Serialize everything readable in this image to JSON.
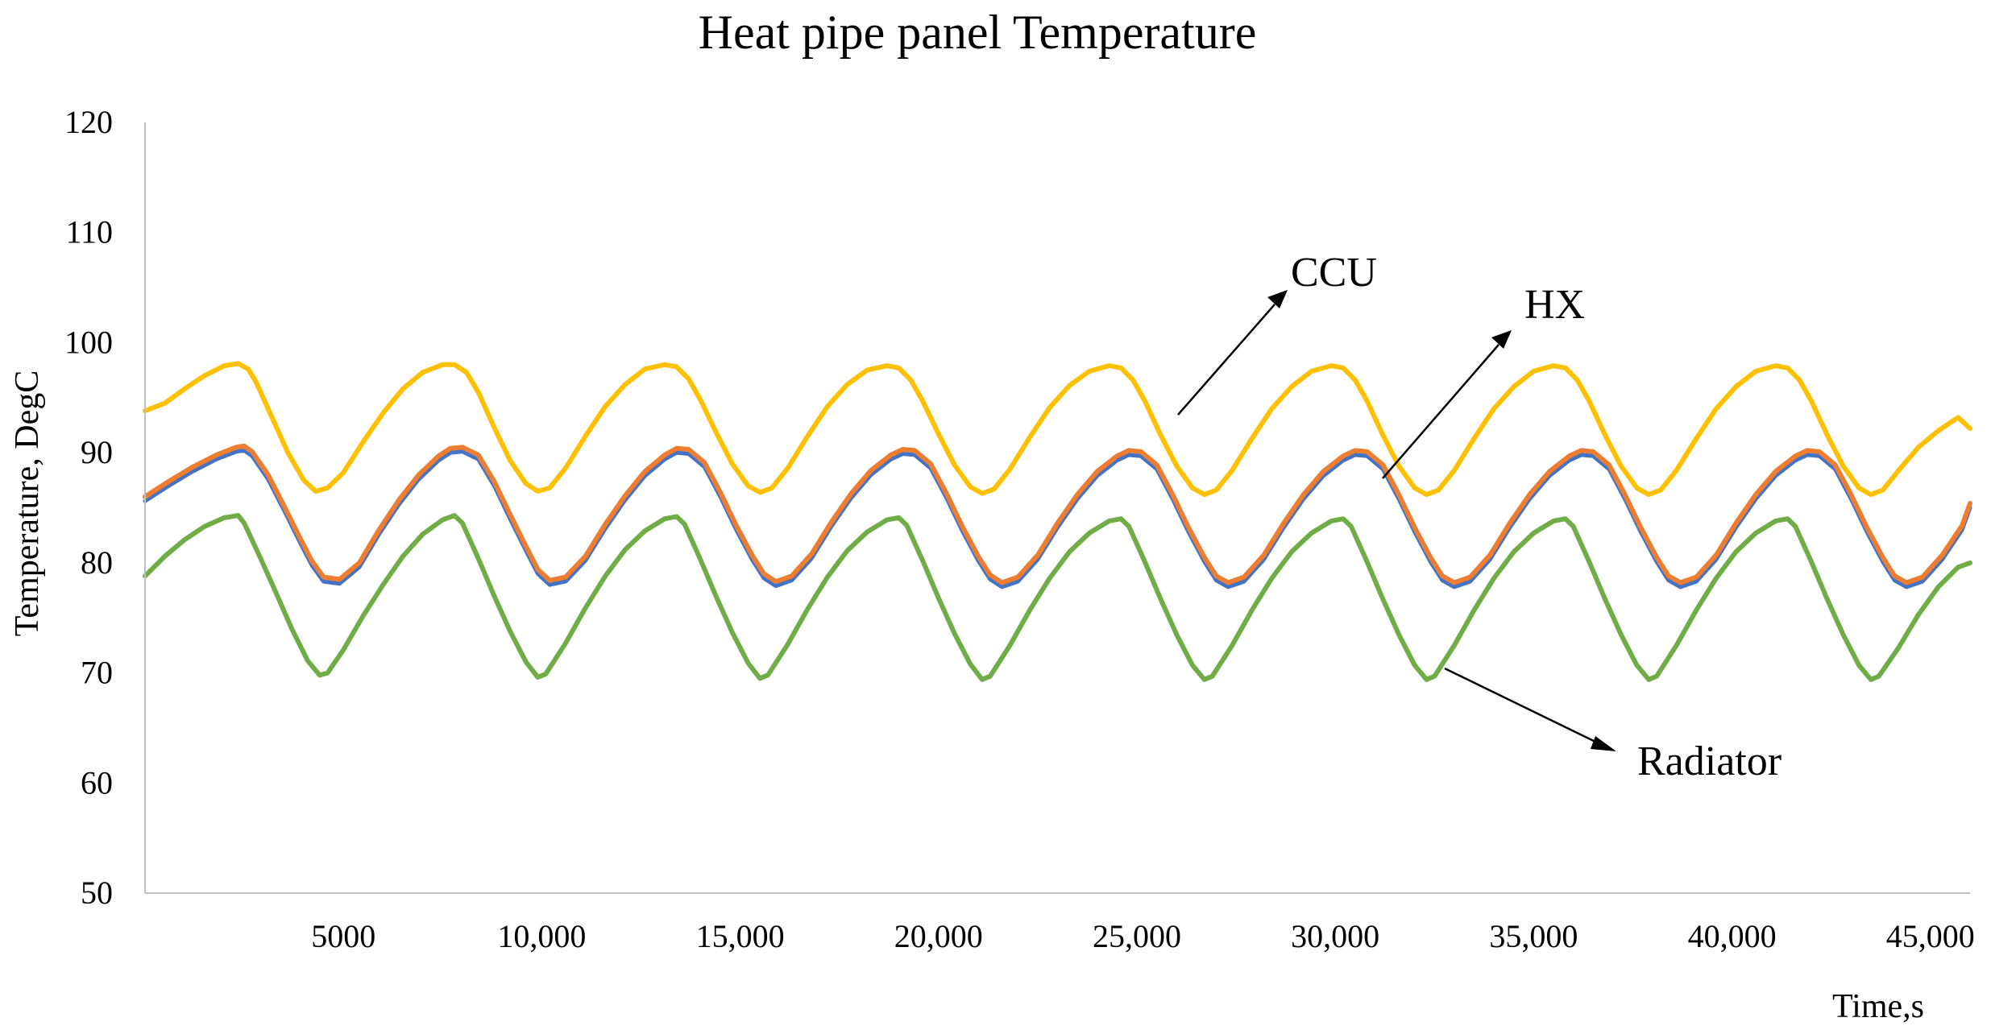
{
  "chart_data": {
    "type": "line",
    "title": "Heat pipe panel Temperature",
    "xlabel": "Time,s",
    "ylabel": "Temperature, DegC",
    "xlim": [
      0,
      46000
    ],
    "ylim": [
      50,
      120
    ],
    "x_ticks": [
      {
        "value": 5000,
        "label": "5000"
      },
      {
        "value": 10000,
        "label": "10,000"
      },
      {
        "value": 15000,
        "label": "15,000"
      },
      {
        "value": 20000,
        "label": "20,000"
      },
      {
        "value": 25000,
        "label": "25,000"
      },
      {
        "value": 30000,
        "label": "30,000"
      },
      {
        "value": 35000,
        "label": "35,000"
      },
      {
        "value": 40000,
        "label": "40,000"
      },
      {
        "value": 45000,
        "label": "45,000"
      }
    ],
    "y_ticks": [
      {
        "value": 50,
        "label": "50"
      },
      {
        "value": 60,
        "label": "60"
      },
      {
        "value": 70,
        "label": "70"
      },
      {
        "value": 80,
        "label": "80"
      },
      {
        "value": 90,
        "label": "90"
      },
      {
        "value": 100,
        "label": "100"
      },
      {
        "value": 110,
        "label": "110"
      },
      {
        "value": 120,
        "label": "120"
      }
    ],
    "grid": false,
    "series": [
      {
        "name": "CCU",
        "color": "#FFC000",
        "x": [
          0,
          500,
          1000,
          1500,
          2000,
          2350,
          2600,
          2800,
          3200,
          3600,
          4000,
          4300,
          4600,
          5000,
          5500,
          6000,
          6500,
          7000,
          7500,
          7800,
          8100,
          8400,
          8800,
          9200,
          9600,
          9900,
          10200,
          10600,
          11100,
          11600,
          12100,
          12600,
          13100,
          13400,
          13700,
          14000,
          14400,
          14800,
          15200,
          15500,
          15800,
          16200,
          16700,
          17200,
          17700,
          18200,
          18700,
          19000,
          19300,
          19600,
          20000,
          20400,
          20800,
          21100,
          21400,
          21800,
          22300,
          22800,
          23300,
          23800,
          24300,
          24600,
          24900,
          25200,
          25600,
          26000,
          26400,
          26700,
          27000,
          27400,
          27900,
          28400,
          28900,
          29400,
          29900,
          30200,
          30500,
          30800,
          31200,
          31600,
          32000,
          32300,
          32600,
          33000,
          33500,
          34000,
          34500,
          35000,
          35500,
          35800,
          36100,
          36400,
          36800,
          37200,
          37600,
          37900,
          38200,
          38600,
          39100,
          39600,
          40100,
          40600,
          41100,
          41400,
          41700,
          42000,
          42400,
          42800,
          43200,
          43500,
          43800,
          44200,
          44700,
          45200,
          45700,
          46000
        ],
        "values": [
          93.8,
          94.5,
          95.8,
          97.0,
          97.9,
          98.1,
          97.6,
          96.4,
          93.2,
          90.0,
          87.5,
          86.5,
          86.8,
          88.2,
          91.0,
          93.6,
          95.8,
          97.3,
          98.0,
          98.0,
          97.3,
          95.5,
          92.3,
          89.3,
          87.2,
          86.5,
          86.8,
          88.6,
          91.5,
          94.2,
          96.2,
          97.6,
          98.0,
          97.8,
          96.7,
          94.8,
          91.8,
          89.0,
          87.0,
          86.4,
          86.8,
          88.6,
          91.5,
          94.2,
          96.2,
          97.5,
          97.9,
          97.7,
          96.6,
          94.7,
          91.7,
          88.9,
          86.9,
          86.3,
          86.7,
          88.5,
          91.4,
          94.1,
          96.1,
          97.4,
          97.9,
          97.7,
          96.6,
          94.7,
          91.6,
          88.8,
          86.8,
          86.2,
          86.6,
          88.4,
          91.3,
          94.0,
          96.0,
          97.4,
          97.9,
          97.7,
          96.6,
          94.7,
          91.6,
          88.8,
          86.8,
          86.2,
          86.6,
          88.4,
          91.3,
          94.0,
          96.0,
          97.4,
          97.9,
          97.7,
          96.6,
          94.7,
          91.6,
          88.8,
          86.8,
          86.2,
          86.6,
          88.4,
          91.3,
          94.0,
          96.0,
          97.4,
          97.9,
          97.7,
          96.6,
          94.7,
          91.6,
          88.8,
          86.8,
          86.2,
          86.6,
          88.4,
          90.5,
          92.0,
          93.2,
          92.2
        ]
      },
      {
        "name": "HX (blue)",
        "color": "#4472C4",
        "x": [
          0,
          600,
          1200,
          1800,
          2300,
          2500,
          2700,
          3100,
          3500,
          3900,
          4200,
          4500,
          4900,
          5400,
          5900,
          6400,
          6900,
          7400,
          7700,
          8000,
          8400,
          8800,
          9200,
          9600,
          9900,
          10200,
          10600,
          11100,
          11600,
          12100,
          12600,
          13100,
          13400,
          13700,
          14100,
          14500,
          14900,
          15300,
          15600,
          15900,
          16300,
          16800,
          17300,
          17800,
          18300,
          18800,
          19100,
          19400,
          19800,
          20200,
          20600,
          21000,
          21300,
          21600,
          22000,
          22500,
          23000,
          23500,
          24000,
          24500,
          24800,
          25100,
          25500,
          25900,
          26300,
          26700,
          27000,
          27300,
          27700,
          28200,
          28700,
          29200,
          29700,
          30200,
          30500,
          30800,
          31200,
          31600,
          32000,
          32400,
          32700,
          33000,
          33400,
          33900,
          34400,
          34900,
          35400,
          35900,
          36200,
          36500,
          36900,
          37300,
          37700,
          38100,
          38400,
          38700,
          39100,
          39600,
          40100,
          40600,
          41100,
          41600,
          41900,
          42200,
          42600,
          43000,
          43400,
          43800,
          44100,
          44400,
          44800,
          45300,
          45800,
          46000
        ],
        "values": [
          85.6,
          87.0,
          88.3,
          89.4,
          90.1,
          90.2,
          89.7,
          87.6,
          84.8,
          81.9,
          79.8,
          78.3,
          78.1,
          79.6,
          82.6,
          85.3,
          87.6,
          89.3,
          90.0,
          90.1,
          89.4,
          87.0,
          84.0,
          81.1,
          79.0,
          78.0,
          78.3,
          80.2,
          83.1,
          85.7,
          87.9,
          89.4,
          90.0,
          89.9,
          88.7,
          86.0,
          83.0,
          80.3,
          78.6,
          77.9,
          78.4,
          80.4,
          83.3,
          85.9,
          88.0,
          89.4,
          89.9,
          89.8,
          88.6,
          85.9,
          82.9,
          80.2,
          78.5,
          77.8,
          78.3,
          80.3,
          83.2,
          85.8,
          87.9,
          89.3,
          89.8,
          89.7,
          88.5,
          85.8,
          82.8,
          80.1,
          78.4,
          77.8,
          78.3,
          80.3,
          83.2,
          85.8,
          87.9,
          89.3,
          89.8,
          89.7,
          88.5,
          85.8,
          82.8,
          80.1,
          78.4,
          77.8,
          78.3,
          80.3,
          83.2,
          85.8,
          87.9,
          89.3,
          89.8,
          89.7,
          88.5,
          85.8,
          82.8,
          80.1,
          78.4,
          77.8,
          78.3,
          80.3,
          83.2,
          85.8,
          87.9,
          89.3,
          89.8,
          89.7,
          88.5,
          85.8,
          82.8,
          80.1,
          78.4,
          77.8,
          78.3,
          80.3,
          83.0,
          85.0
        ]
      },
      {
        "name": "HX (orange)",
        "color": "#ED7D31",
        "x": [
          0,
          600,
          1200,
          1800,
          2300,
          2500,
          2700,
          3100,
          3500,
          3900,
          4200,
          4500,
          4900,
          5400,
          5900,
          6400,
          6900,
          7400,
          7700,
          8000,
          8400,
          8800,
          9200,
          9600,
          9900,
          10200,
          10600,
          11100,
          11600,
          12100,
          12600,
          13100,
          13400,
          13700,
          14100,
          14500,
          14900,
          15300,
          15600,
          15900,
          16300,
          16800,
          17300,
          17800,
          18300,
          18800,
          19100,
          19400,
          19800,
          20200,
          20600,
          21000,
          21300,
          21600,
          22000,
          22500,
          23000,
          23500,
          24000,
          24500,
          24800,
          25100,
          25500,
          25900,
          26300,
          26700,
          27000,
          27300,
          27700,
          28200,
          28700,
          29200,
          29700,
          30200,
          30500,
          30800,
          31200,
          31600,
          32000,
          32400,
          32700,
          33000,
          33400,
          33900,
          34400,
          34900,
          35400,
          35900,
          36200,
          36500,
          36900,
          37300,
          37700,
          38100,
          38400,
          38700,
          39100,
          39600,
          40100,
          40600,
          41100,
          41600,
          41900,
          42200,
          42600,
          43000,
          43400,
          43800,
          44100,
          44400,
          44800,
          45300,
          45800,
          46000
        ],
        "values": [
          86.0,
          87.4,
          88.7,
          89.8,
          90.5,
          90.6,
          90.1,
          88.0,
          85.2,
          82.3,
          80.2,
          78.7,
          78.5,
          80.0,
          83.0,
          85.7,
          88.0,
          89.7,
          90.4,
          90.5,
          89.8,
          87.4,
          84.4,
          81.5,
          79.4,
          78.4,
          78.7,
          80.6,
          83.5,
          86.1,
          88.3,
          89.8,
          90.4,
          90.3,
          89.1,
          86.4,
          83.4,
          80.7,
          79.0,
          78.3,
          78.8,
          80.8,
          83.7,
          86.3,
          88.4,
          89.8,
          90.3,
          90.2,
          89.0,
          86.3,
          83.3,
          80.6,
          78.9,
          78.2,
          78.7,
          80.7,
          83.6,
          86.2,
          88.3,
          89.7,
          90.2,
          90.1,
          88.9,
          86.2,
          83.2,
          80.5,
          78.8,
          78.2,
          78.7,
          80.7,
          83.6,
          86.2,
          88.3,
          89.7,
          90.2,
          90.1,
          88.9,
          86.2,
          83.2,
          80.5,
          78.8,
          78.2,
          78.7,
          80.7,
          83.6,
          86.2,
          88.3,
          89.7,
          90.2,
          90.1,
          88.9,
          86.2,
          83.2,
          80.5,
          78.8,
          78.2,
          78.7,
          80.7,
          83.6,
          86.2,
          88.3,
          89.7,
          90.2,
          90.1,
          88.9,
          86.2,
          83.2,
          80.5,
          78.8,
          78.2,
          78.7,
          80.7,
          83.4,
          85.4
        ]
      },
      {
        "name": "Radiator",
        "color": "#70AD47",
        "x": [
          0,
          500,
          1000,
          1500,
          2000,
          2350,
          2500,
          2900,
          3300,
          3700,
          4100,
          4400,
          4600,
          5000,
          5500,
          6000,
          6500,
          7000,
          7500,
          7800,
          8000,
          8400,
          8800,
          9200,
          9600,
          9900,
          10100,
          10600,
          11100,
          11600,
          12100,
          12600,
          13100,
          13400,
          13600,
          14000,
          14400,
          14800,
          15200,
          15500,
          15700,
          16200,
          16700,
          17200,
          17700,
          18200,
          18700,
          19000,
          19200,
          19600,
          20000,
          20400,
          20800,
          21100,
          21300,
          21800,
          22300,
          22800,
          23300,
          23800,
          24300,
          24600,
          24800,
          25200,
          25600,
          26000,
          26400,
          26700,
          26900,
          27400,
          27900,
          28400,
          28900,
          29400,
          29900,
          30200,
          30400,
          30800,
          31200,
          31600,
          32000,
          32300,
          32500,
          33000,
          33500,
          34000,
          34500,
          35000,
          35500,
          35800,
          36000,
          36400,
          36800,
          37200,
          37600,
          37900,
          38100,
          38600,
          39100,
          39600,
          40100,
          40600,
          41100,
          41400,
          41600,
          42000,
          42400,
          42800,
          43200,
          43500,
          43700,
          44200,
          44700,
          45200,
          45700,
          46000
        ],
        "values": [
          78.8,
          80.6,
          82.1,
          83.3,
          84.1,
          84.3,
          83.6,
          80.5,
          77.3,
          74.0,
          71.1,
          69.8,
          70.0,
          72.1,
          75.2,
          78.0,
          80.6,
          82.6,
          83.9,
          84.3,
          83.6,
          80.4,
          77.0,
          73.8,
          71.0,
          69.6,
          69.9,
          72.7,
          75.9,
          78.8,
          81.2,
          82.9,
          84.0,
          84.2,
          83.5,
          80.3,
          76.9,
          73.7,
          70.9,
          69.5,
          69.8,
          72.6,
          75.8,
          78.7,
          81.1,
          82.8,
          83.9,
          84.1,
          83.4,
          80.2,
          76.8,
          73.6,
          70.8,
          69.4,
          69.7,
          72.5,
          75.7,
          78.6,
          81.0,
          82.7,
          83.8,
          84.0,
          83.3,
          80.1,
          76.7,
          73.5,
          70.7,
          69.4,
          69.7,
          72.5,
          75.7,
          78.6,
          81.0,
          82.7,
          83.8,
          84.0,
          83.3,
          80.1,
          76.7,
          73.5,
          70.7,
          69.4,
          69.7,
          72.5,
          75.7,
          78.6,
          81.0,
          82.7,
          83.8,
          84.0,
          83.3,
          80.1,
          76.7,
          73.5,
          70.7,
          69.4,
          69.7,
          72.5,
          75.7,
          78.6,
          81.0,
          82.7,
          83.8,
          84.0,
          83.3,
          80.1,
          76.7,
          73.5,
          70.7,
          69.4,
          69.7,
          72.3,
          75.3,
          77.8,
          79.6,
          80.0
        ]
      }
    ],
    "annotations": [
      {
        "text": "CCU",
        "series": "CCU"
      },
      {
        "text": "HX",
        "series": "HX"
      },
      {
        "text": "Radiator",
        "series": "Radiator"
      }
    ]
  }
}
